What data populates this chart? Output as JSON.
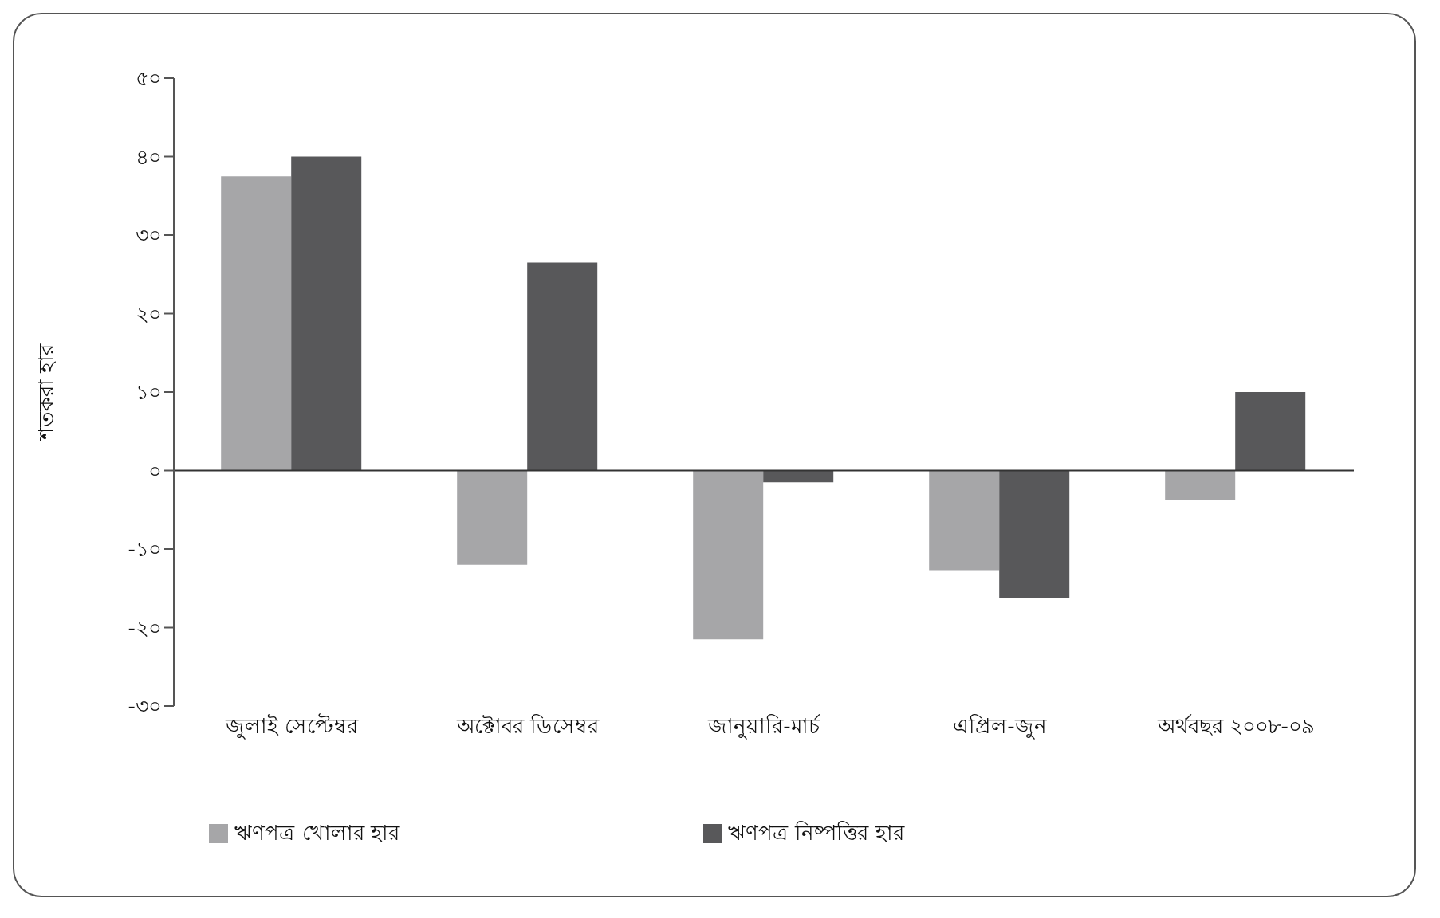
{
  "chart_data": {
    "type": "bar",
    "ylabel": "শতকরা হার",
    "categories": [
      "জুলাই সেপ্টেম্বর",
      "অক্টোবর ডিসেম্বর",
      "জানুয়ারি-মার্চ",
      "এপ্রিল-জুন",
      "অর্থবছর ২০০৮-০৯"
    ],
    "series": [
      {
        "name": "ঋণপত্র খোলার হার",
        "color": "#a6a6a8",
        "values": [
          37.5,
          -12,
          -21.5,
          -12.7,
          -3.7
        ]
      },
      {
        "name": "ঋণপত্র নিষ্পত্তির হার",
        "color": "#58585a",
        "values": [
          40,
          26.5,
          -1.5,
          -16.2,
          10
        ]
      }
    ],
    "ylim": [
      -30,
      50
    ],
    "yticks": [
      {
        "value": 50,
        "label": "৫০"
      },
      {
        "value": 40,
        "label": "৪০"
      },
      {
        "value": 30,
        "label": "৩০"
      },
      {
        "value": 20,
        "label": "২০"
      },
      {
        "value": 10,
        "label": "১০"
      },
      {
        "value": 0,
        "label": "০"
      },
      {
        "value": -10,
        "label": "-১০"
      },
      {
        "value": -20,
        "label": "-২০"
      },
      {
        "value": -30,
        "label": "-৩০"
      }
    ],
    "legend": "bottom"
  }
}
